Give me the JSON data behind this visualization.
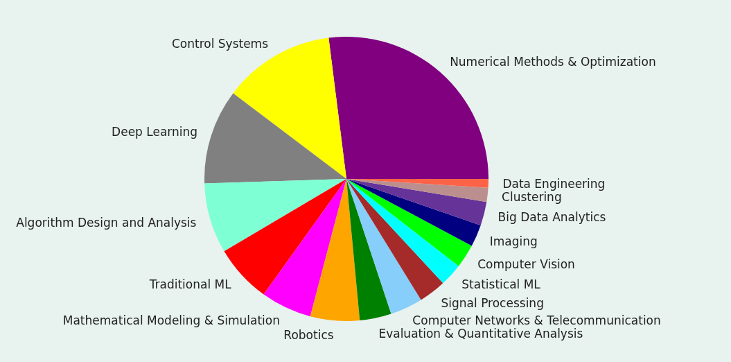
{
  "chart_data": {
    "type": "pie",
    "categories": [
      "Numerical Methods & Optimization",
      "Control Systems",
      "Deep Learning",
      "Algorithm Design and Analysis",
      "Traditional ML",
      "Mathematical Modeling & Simulation",
      "Robotics",
      "Evaluation & Quantitative Analysis",
      "Computer Networks & Telecommunication",
      "Signal Processing",
      "Statistical ML",
      "Computer Vision",
      "Imaging",
      "Big Data Analytics",
      "Clustering",
      "Data Engineering"
    ],
    "values": [
      27.0,
      12.7,
      10.8,
      8.0,
      6.6,
      5.8,
      5.6,
      3.6,
      3.7,
      3.1,
      2.6,
      2.7,
      2.5,
      2.7,
      1.6,
      1.0
    ],
    "colors": [
      "#800080",
      "#ffff00",
      "#808080",
      "#7fffd4",
      "#ff0000",
      "#ff00ff",
      "#ffa500",
      "#008000",
      "#87cefa",
      "#a52a2a",
      "#00ffff",
      "#00ff00",
      "#000080",
      "#663399",
      "#bc8f8f",
      "#ff6347"
    ]
  }
}
